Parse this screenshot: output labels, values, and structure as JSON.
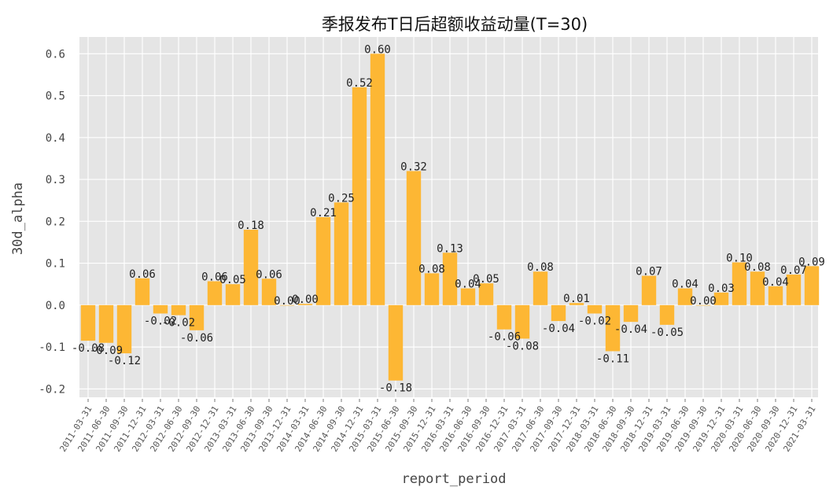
{
  "chart_data": {
    "type": "bar",
    "title": "季报发布T日后超额收益动量(T=30)",
    "xlabel": "report_period",
    "ylabel": "30d_alpha",
    "ylim": [
      -0.22,
      0.64
    ],
    "yticks": [
      -0.2,
      -0.1,
      0.0,
      0.1,
      0.2,
      0.3,
      0.4,
      0.5,
      0.6
    ],
    "ytick_labels": [
      "-0.2",
      "-0.1",
      "0.0",
      "0.1",
      "0.2",
      "0.3",
      "0.4",
      "0.5",
      "0.6"
    ],
    "bar_color": "#FDB734",
    "background_color": "#E5E5E5",
    "grid": true,
    "categories": [
      "2011-03-31",
      "2011-06-30",
      "2011-09-30",
      "2011-12-31",
      "2012-03-31",
      "2012-06-30",
      "2012-09-30",
      "2012-12-31",
      "2013-03-31",
      "2013-06-30",
      "2013-09-30",
      "2013-12-31",
      "2014-03-31",
      "2014-06-30",
      "2014-09-30",
      "2014-12-31",
      "2015-03-31",
      "2015-06-30",
      "2015-09-30",
      "2015-12-31",
      "2016-03-31",
      "2016-06-30",
      "2016-09-30",
      "2016-12-31",
      "2017-03-31",
      "2017-06-30",
      "2017-09-30",
      "2017-12-31",
      "2018-03-31",
      "2018-06-30",
      "2018-09-30",
      "2018-12-31",
      "2019-03-31",
      "2019-06-30",
      "2019-09-30",
      "2019-12-31",
      "2020-03-31",
      "2020-06-30",
      "2020-09-30",
      "2020-12-31",
      "2021-03-31"
    ],
    "values": [
      -0.085,
      -0.09,
      -0.115,
      0.064,
      -0.02,
      -0.024,
      -0.06,
      0.057,
      0.05,
      0.18,
      0.063,
      0.0,
      0.003,
      0.21,
      0.245,
      0.52,
      0.6,
      -0.18,
      0.32,
      0.076,
      0.125,
      0.04,
      0.052,
      -0.058,
      -0.08,
      0.08,
      -0.038,
      0.005,
      -0.02,
      -0.11,
      -0.04,
      0.07,
      -0.047,
      0.04,
      0.0,
      0.03,
      0.102,
      0.08,
      0.045,
      0.073,
      0.093
    ],
    "data_labels": [
      "-0.08",
      "-0.09",
      "-0.12",
      "0.06",
      "-0.02",
      "-0.02",
      "-0.06",
      "0.06",
      "0.05",
      "0.18",
      "0.06",
      "0.00",
      "0.00",
      "0.21",
      "0.25",
      "0.52",
      "0.60",
      "-0.18",
      "0.32",
      "0.08",
      "0.13",
      "0.04",
      "0.05",
      "-0.06",
      "-0.08",
      "0.08",
      "-0.04",
      "0.01",
      "-0.02",
      "-0.11",
      "-0.04",
      "0.07",
      "-0.05",
      "0.04",
      "0.00",
      "0.03",
      "0.10",
      "0.08",
      "0.04",
      "0.07",
      "0.09"
    ]
  }
}
